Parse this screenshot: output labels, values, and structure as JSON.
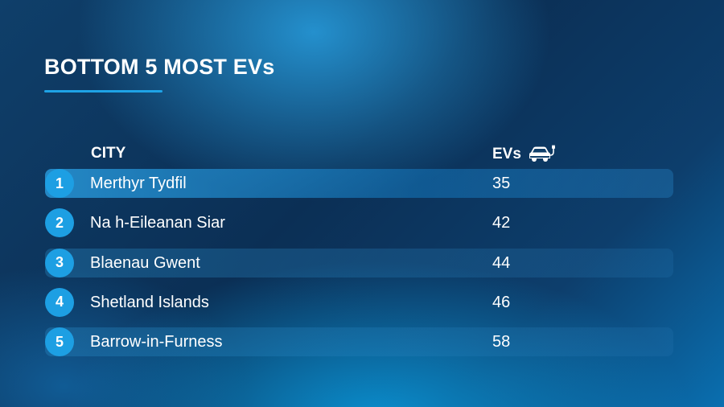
{
  "title": "BOTTOM 5 MOST EVs",
  "table": {
    "headers": {
      "city": "CITY",
      "evs": "EVs",
      "evs_icon": "ev-car-icon"
    },
    "rows": [
      {
        "rank": "1",
        "city": "Merthyr Tydfil",
        "evs": "35"
      },
      {
        "rank": "2",
        "city": "Na h-Eileanan Siar",
        "evs": "42"
      },
      {
        "rank": "3",
        "city": "Blaenau Gwent",
        "evs": "44"
      },
      {
        "rank": "4",
        "city": "Shetland Islands",
        "evs": "46"
      },
      {
        "rank": "5",
        "city": "Barrow-in-Furness",
        "evs": "58"
      }
    ]
  },
  "colors": {
    "accent": "#1ea3e6",
    "background_dark": "#0b2f55"
  }
}
